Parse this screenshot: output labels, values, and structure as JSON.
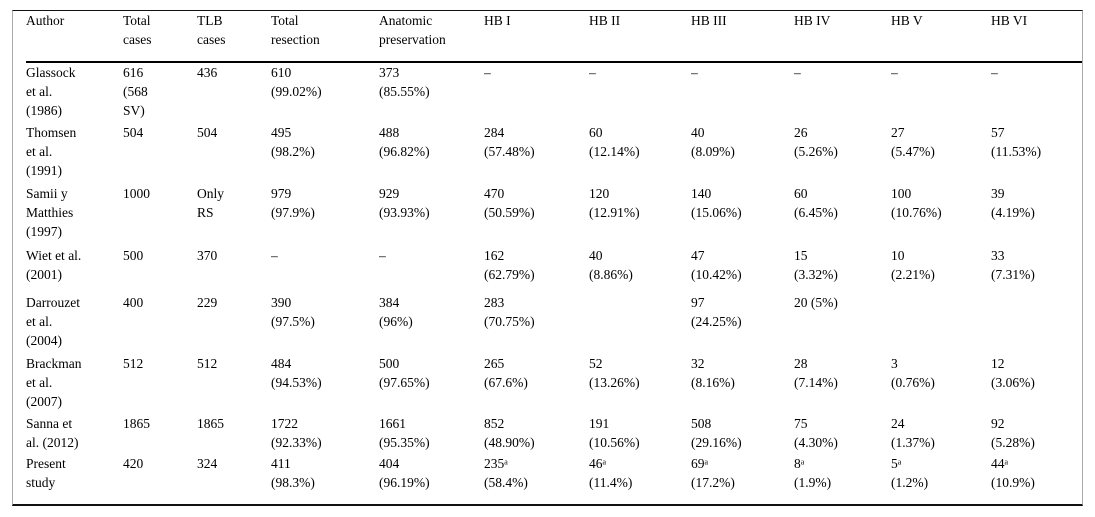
{
  "colors": {
    "background": "#ffffff",
    "text": "#000000",
    "rule": "#000000"
  },
  "table": {
    "columns": [
      "Author",
      "Total\ncases",
      "TLB\ncases",
      "Total\nresection",
      "Anatomic\npreservation",
      "HB I",
      "HB II",
      "HB III",
      "HB IV",
      "HB V",
      "HB VI"
    ],
    "rows": [
      [
        "Glassock\net al.\n(1986)",
        "616\n(568\nSV)",
        "436",
        "610\n(99.02%)",
        "373\n(85.55%)",
        "–",
        "–",
        "–",
        "–",
        "–",
        "–"
      ],
      [
        "Thomsen\net al.\n(1991)",
        "504",
        "504",
        "495\n(98.2%)",
        "488\n(96.82%)",
        "284\n(57.48%)",
        "60\n(12.14%)",
        "40\n(8.09%)",
        "26\n(5.26%)",
        "27\n(5.47%)",
        "57\n(11.53%)"
      ],
      [
        "Samii y\nMatthies\n(1997)",
        "1000",
        "Only\nRS",
        "979\n(97.9%)",
        "929\n(93.93%)",
        "470\n(50.59%)",
        "120\n(12.91%)",
        "140\n(15.06%)",
        "60\n(6.45%)",
        "100\n(10.76%)",
        "39\n(4.19%)"
      ],
      [
        "Wiet et al.\n(2001)",
        "500",
        "370",
        "–",
        "–",
        "162\n(62.79%)",
        "40\n(8.86%)",
        "47\n(10.42%)",
        "15\n(3.32%)",
        "10\n(2.21%)",
        "33\n(7.31%)"
      ],
      [
        "Darrouzet\net al.\n(2004)",
        "400",
        "229",
        "390\n(97.5%)",
        "384\n(96%)",
        "283\n(70.75%)",
        "",
        "97\n(24.25%)",
        "20 (5%)",
        "",
        ""
      ],
      [
        "Brackman\net al.\n(2007)",
        "512",
        "512",
        "484\n(94.53%)",
        "500\n(97.65%)",
        "265\n(67.6%)",
        "52\n(13.26%)",
        "32\n(8.16%)",
        "28\n(7.14%)",
        "3\n(0.76%)",
        "12\n(3.06%)"
      ],
      [
        "Sanna et\nal. (2012)",
        "1865",
        "1865",
        "1722\n(92.33%)",
        "1661\n(95.35%)",
        "852\n(48.90%)",
        "191\n(10.56%)",
        "508\n(29.16%)",
        "75\n(4.30%)",
        "24\n(1.37%)",
        "92\n(5.28%)"
      ],
      [
        "Present\nstudy",
        "420",
        "324",
        "411\n(98.3%)",
        "404\n(96.19%)",
        "235ᵃ\n(58.4%)",
        "46ᵃ\n(11.4%)",
        "69ᵃ\n(17.2%)",
        "8ᵃ\n(1.9%)",
        "5ᵃ\n(1.2%)",
        "44ᵃ\n(10.9%)"
      ]
    ]
  }
}
